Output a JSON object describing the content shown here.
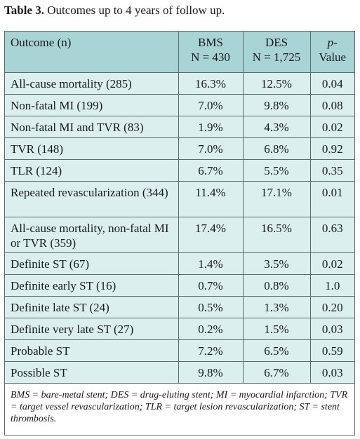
{
  "caption": {
    "label": "Table 3.",
    "text": " Outcomes up to 4 years of follow up."
  },
  "table": {
    "headers": {
      "outcome": "Outcome (n)",
      "bms": "BMS",
      "bms_n": "N = 430",
      "des": "DES",
      "des_n": "N = 1,725",
      "p_line1": "p-",
      "p_line2": "Value"
    },
    "rows": [
      {
        "outcome": "All-cause mortality (285)",
        "bms": "16.3%",
        "des": "12.5%",
        "p": "0.04"
      },
      {
        "outcome": "Non-fatal MI (199)",
        "bms": "7.0%",
        "des": "9.8%",
        "p": "0.08"
      },
      {
        "outcome": "Non-fatal MI and TVR (83)",
        "bms": "1.9%",
        "des": "4.3%",
        "p": "0.02"
      },
      {
        "outcome": "TVR (148)",
        "bms": "7.0%",
        "des": "6.8%",
        "p": "0.92"
      },
      {
        "outcome": "TLR (124)",
        "bms": "6.7%",
        "des": "5.5%",
        "p": "0.35"
      },
      {
        "outcome": "Repeated revascularization (344)",
        "bms": "11.4%",
        "des": "17.1%",
        "p": "0.01"
      },
      {
        "outcome": "All-cause mortality, non-fatal MI or TVR (359)",
        "bms": "17.4%",
        "des": "16.5%",
        "p": "0.63"
      },
      {
        "outcome": "Definite ST (67)",
        "bms": "1.4%",
        "des": "3.5%",
        "p": "0.02"
      },
      {
        "outcome": "Definite early ST (16)",
        "bms": "0.7%",
        "des": "0.8%",
        "p": "1.0"
      },
      {
        "outcome": "Definite late ST (24)",
        "bms": "0.5%",
        "des": "1.3%",
        "p": "0.20"
      },
      {
        "outcome": "Definite very late ST (27)",
        "bms": "0.2%",
        "des": "1.5%",
        "p": "0.03"
      },
      {
        "outcome": "Probable ST",
        "bms": "7.2%",
        "des": "6.5%",
        "p": "0.59"
      },
      {
        "outcome": "Possible ST",
        "bms": "9.8%",
        "des": "6.7%",
        "p": "0.03"
      }
    ],
    "footnote": "BMS = bare-metal stent; DES = drug-eluting stent; MI = myocardial infarction; TVR = target vessel revascularization; TLR = target lesion revascularization; ST = stent thrombosis."
  },
  "colors": {
    "header_bg": "#a9d4d6",
    "row_bg": "#dcefef",
    "border": "#5a6b6f"
  }
}
